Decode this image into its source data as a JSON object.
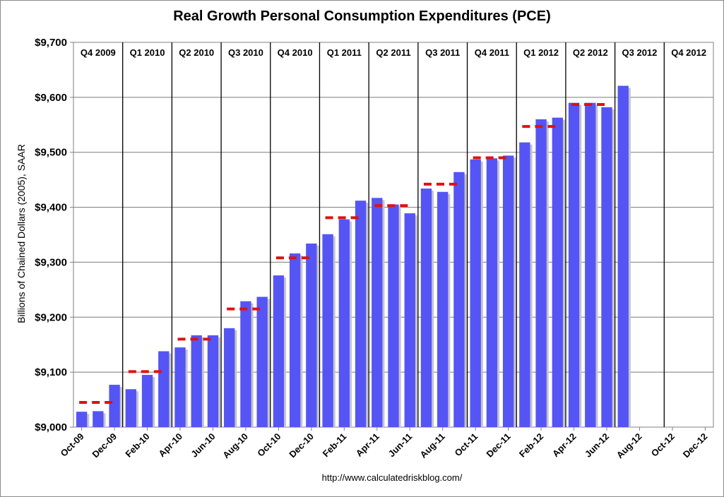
{
  "chart_data": {
    "type": "bar",
    "title": "Real Growth Personal Consumption Expenditures (PCE)",
    "ylabel": "Billions of Chained Dollars (2005), SAAR",
    "xlabel": "",
    "ylim": [
      9000,
      9700
    ],
    "yticks": [
      9000,
      9100,
      9200,
      9300,
      9400,
      9500,
      9600,
      9700
    ],
    "ytick_labels": [
      "$9,000",
      "$9,100",
      "$9,200",
      "$9,300",
      "$9,400",
      "$9,500",
      "$9,600",
      "$9,700"
    ],
    "grid": true,
    "bar_color": "#5555f5",
    "quarter_avg_color": "#e01010",
    "categories": [
      "Oct-09",
      "Nov-09",
      "Dec-09",
      "Jan-10",
      "Feb-10",
      "Mar-10",
      "Apr-10",
      "May-10",
      "Jun-10",
      "Jul-10",
      "Aug-10",
      "Sep-10",
      "Oct-10",
      "Nov-10",
      "Dec-10",
      "Jan-11",
      "Feb-11",
      "Mar-11",
      "Apr-11",
      "May-11",
      "Jun-11",
      "Jul-11",
      "Aug-11",
      "Sep-11",
      "Oct-11",
      "Nov-11",
      "Dec-11",
      "Jan-12",
      "Feb-12",
      "Mar-12",
      "Apr-12",
      "May-12",
      "Jun-12",
      "Jul-12",
      "Aug-12",
      "Sep-12",
      "Oct-12",
      "Nov-12",
      "Dec-12"
    ],
    "values": [
      9028,
      9029,
      9077,
      9069,
      9095,
      9138,
      9145,
      9167,
      9167,
      9180,
      9229,
      9237,
      9276,
      9316,
      9334,
      9351,
      9378,
      9412,
      9417,
      9405,
      9389,
      9434,
      9428,
      9464,
      9487,
      9489,
      9494,
      9518,
      9560,
      9563,
      9590,
      9590,
      9582,
      9621,
      null,
      null,
      null,
      null,
      null
    ],
    "x_tick_labels": [
      "Oct-09",
      "Dec-09",
      "Feb-10",
      "Apr-10",
      "Jun-10",
      "Aug-10",
      "Oct-10",
      "Dec-10",
      "Feb-11",
      "Apr-11",
      "Jun-11",
      "Aug-11",
      "Oct-11",
      "Dec-11",
      "Feb-12",
      "Apr-12",
      "Jun-12",
      "Aug-12",
      "Oct-12",
      "Dec-12"
    ],
    "quarters": [
      {
        "label": "Q4 2009",
        "avg": 9045
      },
      {
        "label": "Q1 2010",
        "avg": 9101
      },
      {
        "label": "Q2 2010",
        "avg": 9160
      },
      {
        "label": "Q3 2010",
        "avg": 9215
      },
      {
        "label": "Q4 2010",
        "avg": 9308
      },
      {
        "label": "Q1 2011",
        "avg": 9381
      },
      {
        "label": "Q2 2011",
        "avg": 9403
      },
      {
        "label": "Q3 2011",
        "avg": 9442
      },
      {
        "label": "Q4 2011",
        "avg": 9490
      },
      {
        "label": "Q1 2012",
        "avg": 9547
      },
      {
        "label": "Q2 2012",
        "avg": 9587
      },
      {
        "label": "Q3 2012",
        "avg": null
      },
      {
        "label": "Q4 2012",
        "avg": null
      }
    ]
  },
  "footer": {
    "url": "http://www.calculatedriskblog.com/"
  }
}
